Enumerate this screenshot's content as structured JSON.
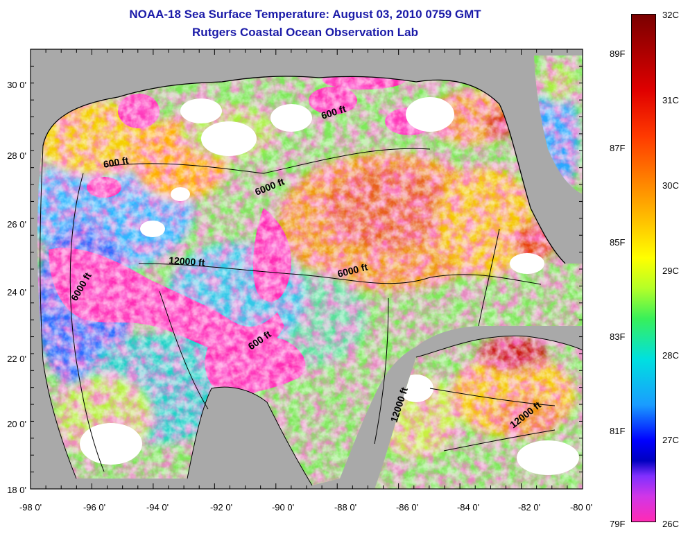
{
  "header": {
    "title": "NOAA-18 Sea Surface Temperature:  August 03, 2010 0759 GMT",
    "subtitle": "Rutgers Coastal Ocean Observation Lab"
  },
  "axes": {
    "lat_labels": [
      "30 0'",
      "28 0'",
      "26 0'",
      "24 0'",
      "22 0'",
      "20 0'",
      "18 0'"
    ],
    "lon_labels": [
      "-98 0'",
      "-96 0'",
      "-94 0'",
      "-92 0'",
      "-90 0'",
      "-88 0'",
      "-86 0'",
      "-84 0'",
      "-82 0'",
      "-80 0'"
    ]
  },
  "contours": {
    "labels": [
      "600 ft",
      "600 ft",
      "6000 ft",
      "12000 ft",
      "6000 ft",
      "6000 ft",
      "600 ft",
      "12000 ft",
      "12000 ft"
    ]
  },
  "colorbar": {
    "celsius": [
      "32C",
      "31C",
      "30C",
      "29C",
      "28C",
      "27C",
      "26C"
    ],
    "fahrenheit": [
      "89F",
      "87F",
      "85F",
      "83F",
      "81F",
      "79F"
    ]
  },
  "colors": {
    "land": "#a9a9a9",
    "title": "#1a1aa8",
    "hot": "#e8420a",
    "warm": "#f5c800",
    "mild": "#a8f03c",
    "cool": "#2aa8ff",
    "cold": "#ff2bb4",
    "cloud": "#ffffff"
  }
}
